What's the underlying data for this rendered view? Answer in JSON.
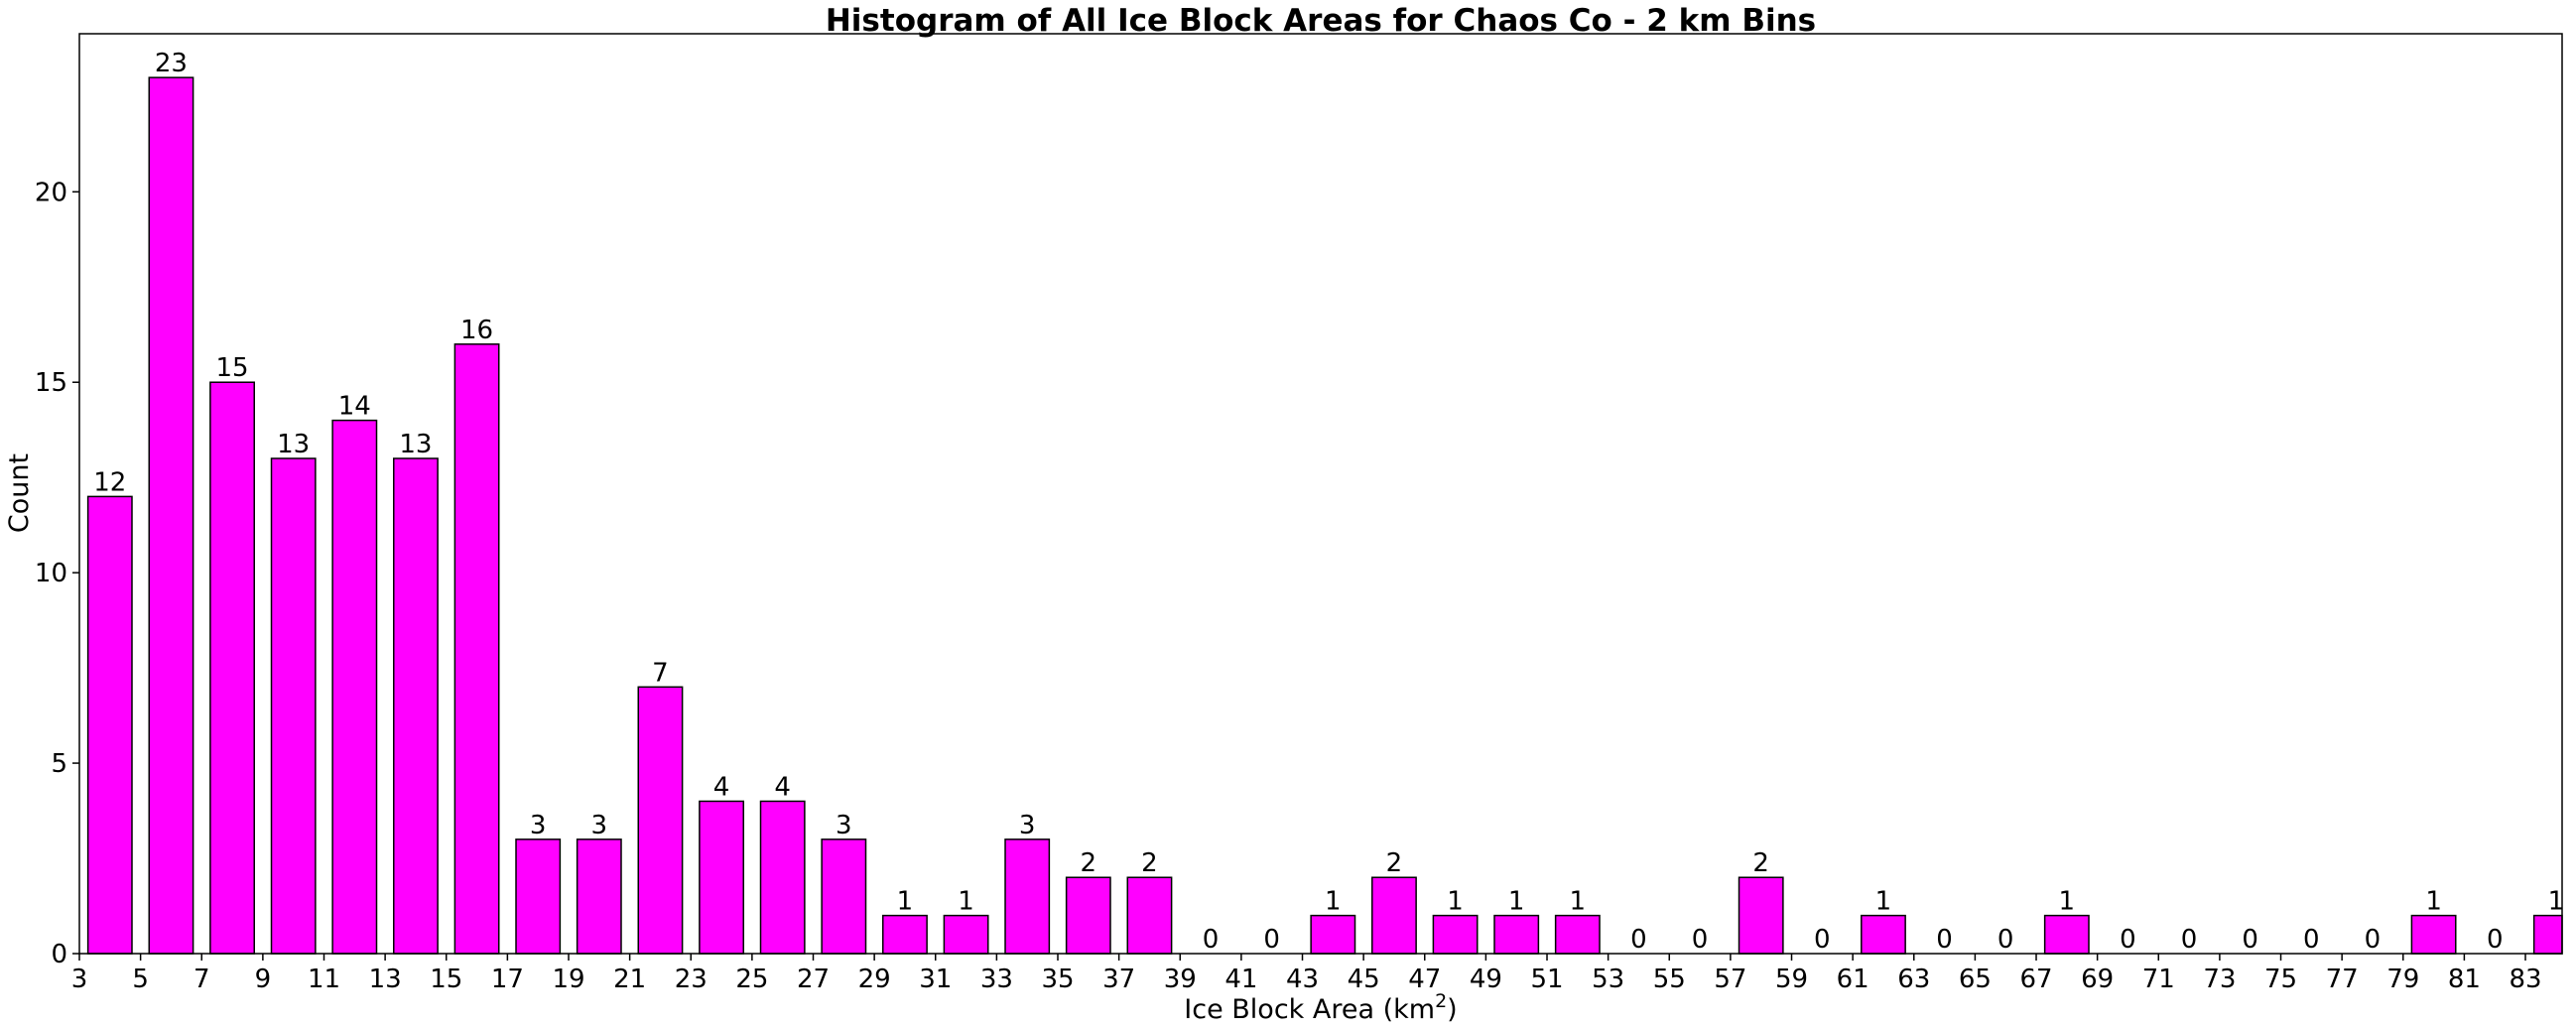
{
  "chart_data": {
    "type": "bar",
    "title": "Histogram of All Ice Block Areas for Chaos Co - 2 km Bins",
    "xlabel": "Ice Block Area (km",
    "xlabel_sup": "2",
    "xlabel_close": ")",
    "ylabel": "Count",
    "bin_edges": [
      3,
      5,
      7,
      9,
      11,
      13,
      15,
      17,
      19,
      21,
      23,
      25,
      27,
      29,
      31,
      33,
      35,
      37,
      39,
      41,
      43,
      45,
      47,
      49,
      51,
      53,
      55,
      57,
      59,
      61,
      63,
      65,
      67,
      69,
      71,
      73,
      75,
      77,
      79,
      81,
      83,
      85
    ],
    "values": [
      12,
      23,
      15,
      13,
      14,
      13,
      16,
      3,
      3,
      7,
      4,
      4,
      3,
      1,
      1,
      3,
      2,
      2,
      0,
      0,
      1,
      2,
      1,
      1,
      1,
      0,
      0,
      2,
      0,
      1,
      0,
      0,
      1,
      0,
      0,
      0,
      0,
      0,
      1,
      0,
      1
    ],
    "x_ticks": [
      3,
      5,
      7,
      9,
      11,
      13,
      15,
      17,
      19,
      21,
      23,
      25,
      27,
      29,
      31,
      33,
      35,
      37,
      39,
      41,
      43,
      45,
      47,
      49,
      51,
      53,
      55,
      57,
      59,
      61,
      63,
      65,
      67,
      69,
      71,
      73,
      75,
      77,
      79,
      81,
      83
    ],
    "y_ticks": [
      0,
      5,
      10,
      15,
      20
    ],
    "xlim": [
      3,
      84.2
    ],
    "ylim": [
      0,
      24.15
    ],
    "bar_color": "#ff00ff",
    "edge_color": "#000000",
    "grid": false,
    "legend": "none"
  }
}
